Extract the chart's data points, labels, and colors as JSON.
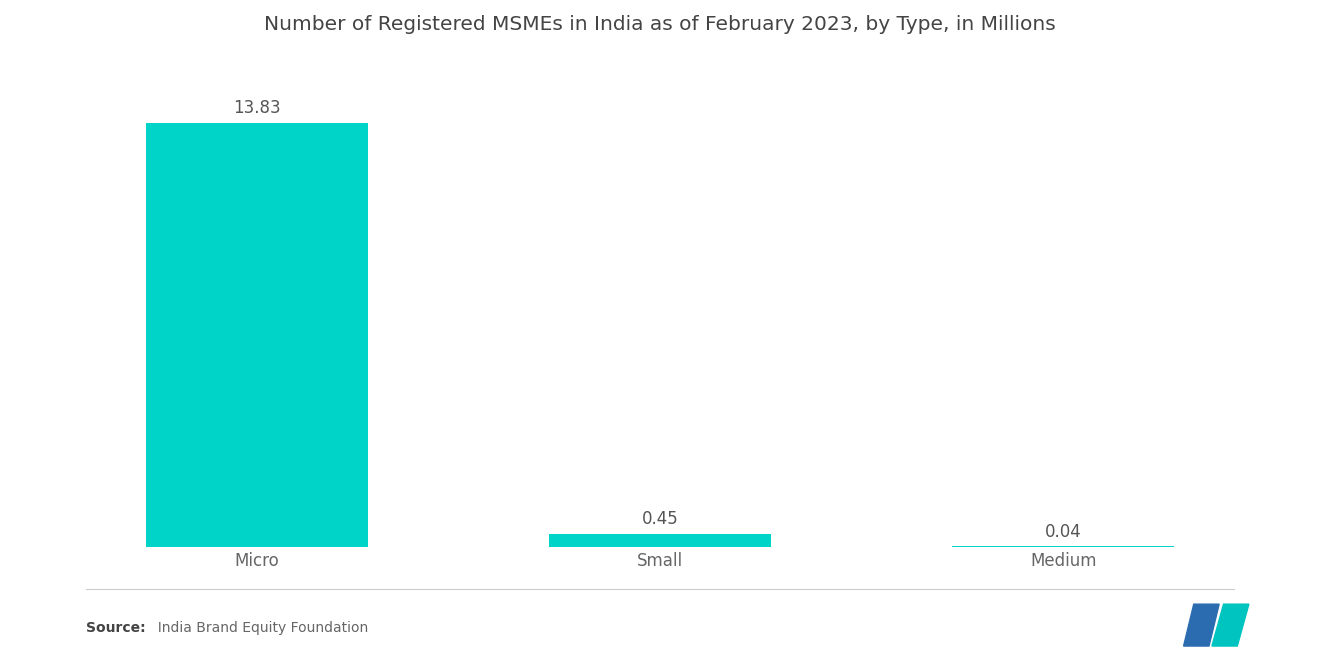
{
  "title": "Number of Registered MSMEs in India as of February 2023, by Type, in Millions",
  "categories": [
    "Micro",
    "Small",
    "Medium"
  ],
  "values": [
    13.83,
    0.45,
    0.04
  ],
  "bar_color": "#00D4C8",
  "background_color": "#ffffff",
  "title_fontsize": 14.5,
  "label_fontsize": 12,
  "value_fontsize": 12,
  "source_bold": "Source:",
  "source_rest": "  India Brand Equity Foundation",
  "ylim": [
    0,
    15.5
  ],
  "bar_width": 0.55,
  "logo_blue": "#2B6CB0",
  "logo_teal": "#00C4C0"
}
